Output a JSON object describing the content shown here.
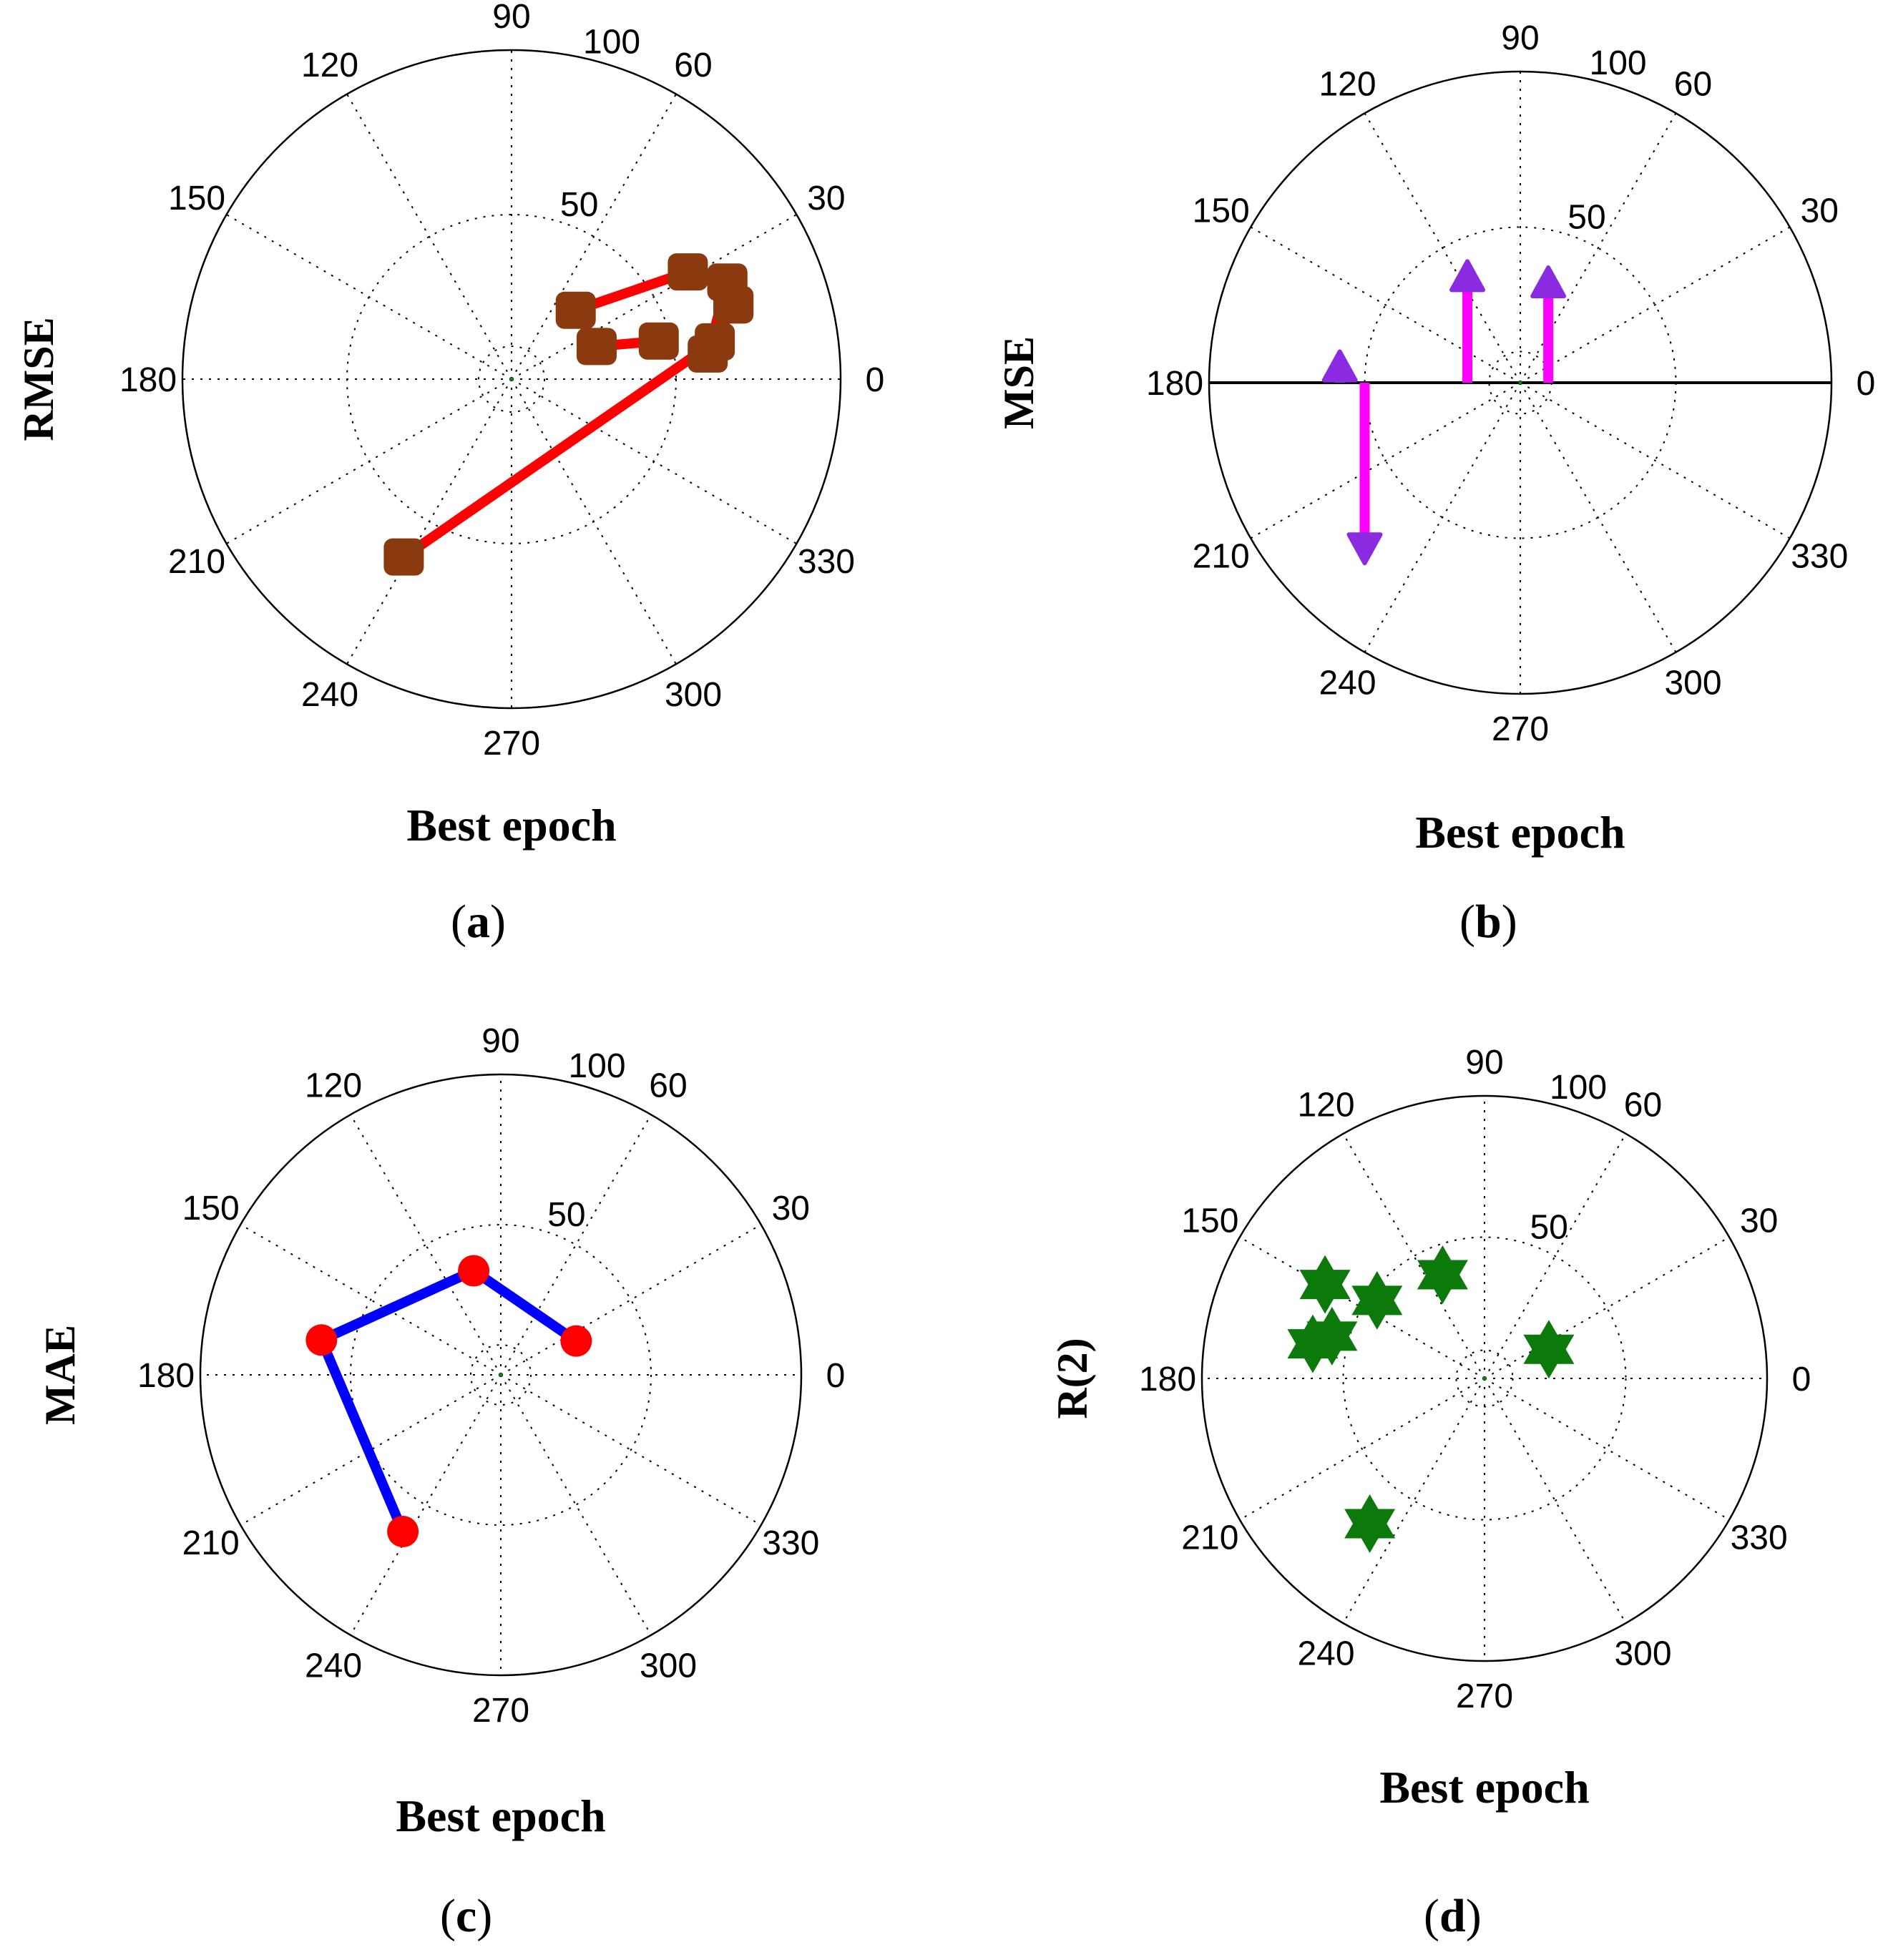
{
  "figure": {
    "panels": [
      {
        "id": "a",
        "caption_letter": "a",
        "caption_open": "(",
        "caption_close": ")"
      },
      {
        "id": "b",
        "caption_letter": "b",
        "caption_open": "(",
        "caption_close": ")"
      },
      {
        "id": "c",
        "caption_letter": "c",
        "caption_open": "(",
        "caption_close": ")"
      },
      {
        "id": "d",
        "caption_letter": "d",
        "caption_open": "(",
        "caption_close": ")"
      }
    ]
  },
  "chart_data": [
    {
      "type": "polar-line",
      "panel": "a",
      "ylabel": "RMSE",
      "xlabel": "Best epoch",
      "angle_labels": [
        "0",
        "30",
        "60",
        "90",
        "120",
        "150",
        "180",
        "210",
        "240",
        "270",
        "300",
        "330"
      ],
      "radial_labels": [
        "50",
        "100"
      ],
      "rlim": [
        0,
        100
      ],
      "angle_unit": "degrees",
      "line_color": "#ff0000",
      "marker": "square",
      "marker_color": "#8b3a0f",
      "points": [
        {
          "theta": 14.5,
          "r": 46.2
        },
        {
          "theta": 21,
          "r": 27.7
        },
        {
          "theta": 47,
          "r": 28.6
        },
        {
          "theta": 31.3,
          "r": 62.7
        },
        {
          "theta": 24.2,
          "r": 71.9
        },
        {
          "theta": 18.5,
          "r": 71.1
        },
        {
          "theta": 7.3,
          "r": 60.1
        },
        {
          "theta": 24.2,
          "r": 71.9
        },
        {
          "theta": 18.5,
          "r": 71.1
        },
        {
          "theta": 10.4,
          "r": 62.8
        },
        {
          "theta": 238.8,
          "r": 63.2
        }
      ]
    },
    {
      "type": "polar-compass",
      "panel": "b",
      "ylabel": "MSE",
      "xlabel": "Best epoch",
      "angle_labels": [
        "0",
        "30",
        "60",
        "90",
        "120",
        "150",
        "180",
        "210",
        "240",
        "270",
        "300",
        "330"
      ],
      "radial_labels": [
        "50",
        "100"
      ],
      "rlim": [
        0,
        100
      ],
      "angle_unit": "degrees",
      "arrow_color": "#ff00ff",
      "arrowhead_color": "#8a2be2",
      "points": [
        {
          "x": 9,
          "y": 37
        },
        {
          "x": -17,
          "y": 39
        },
        {
          "x": -58,
          "y": 10
        },
        {
          "x": -50,
          "y": -58
        }
      ]
    },
    {
      "type": "polar-line",
      "panel": "c",
      "ylabel": "MAE",
      "xlabel": "Best epoch",
      "angle_labels": [
        "0",
        "30",
        "60",
        "90",
        "120",
        "150",
        "180",
        "210",
        "240",
        "270",
        "300",
        "330"
      ],
      "radial_labels": [
        "50",
        "100"
      ],
      "rlim": [
        0,
        100
      ],
      "angle_unit": "degrees",
      "line_color": "#0000ff",
      "marker": "circle",
      "marker_color": "#ff0000",
      "points": [
        {
          "theta": 24.2,
          "r": 27.5
        },
        {
          "theta": 104.6,
          "r": 35.8
        },
        {
          "theta": 169,
          "r": 60.8
        },
        {
          "theta": 238,
          "r": 61.5
        }
      ]
    },
    {
      "type": "polar-scatter",
      "panel": "d",
      "ylabel": "R(2)",
      "xlabel": "Best epoch",
      "angle_labels": [
        "0",
        "30",
        "60",
        "90",
        "120",
        "150",
        "180",
        "210",
        "240",
        "270",
        "300",
        "330"
      ],
      "radial_labels": [
        "50",
        "100"
      ],
      "rlim": [
        0,
        100
      ],
      "angle_unit": "degrees",
      "marker": "hexagram",
      "marker_color": "#0b7a0b",
      "points": [
        {
          "theta": 24.4,
          "r": 25
        },
        {
          "theta": 112,
          "r": 39.6
        },
        {
          "theta": 149.5,
          "r": 65.5
        },
        {
          "theta": 164.5,
          "r": 56
        },
        {
          "theta": 168.6,
          "r": 62
        },
        {
          "theta": 231.7,
          "r": 65.5
        },
        {
          "theta": 144,
          "r": 47
        }
      ]
    }
  ]
}
